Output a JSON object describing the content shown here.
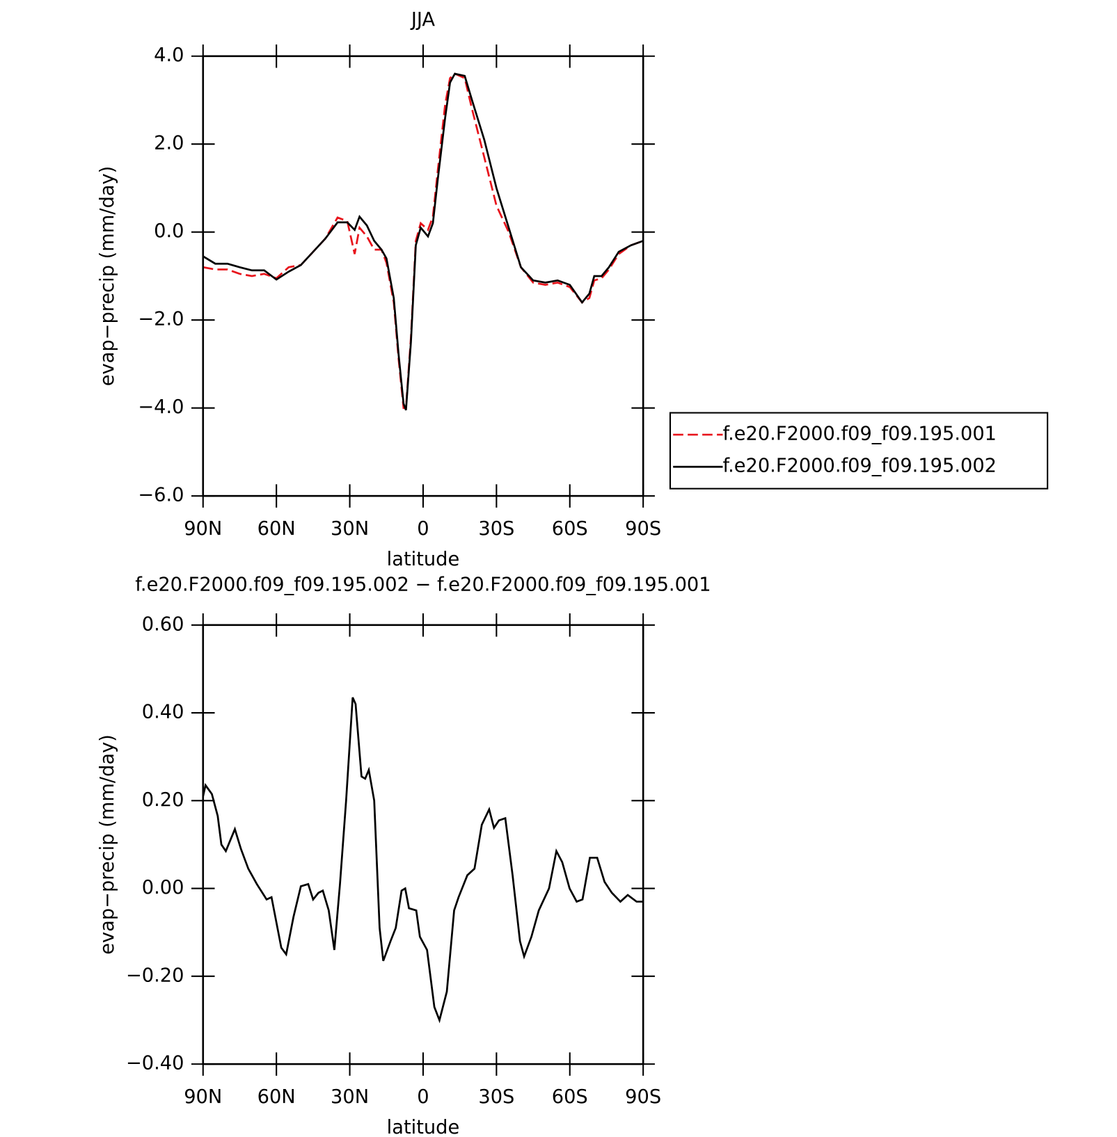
{
  "chart_data": [
    {
      "type": "line",
      "title": "JJA",
      "xlabel": "latitude",
      "ylabel": "evap−precip (mm/day)",
      "x": [
        90,
        85,
        80,
        75,
        70,
        65,
        60,
        55,
        50,
        45,
        40,
        35,
        31,
        28,
        26,
        23,
        20,
        17,
        15,
        12,
        10,
        8,
        7,
        5,
        3,
        1,
        -2,
        -4,
        -6,
        -9,
        -11,
        -13,
        -17,
        -20,
        -25,
        -30,
        -35,
        -40,
        -45,
        -50,
        -55,
        -60,
        -65,
        -68,
        -70,
        -73,
        -76,
        -80,
        -85,
        -90
      ],
      "series": [
        {
          "name": "f.e20.F2000.f09_f09.195.001",
          "color": "#e8141c",
          "style": "dashed",
          "values": [
            -0.8,
            -0.85,
            -0.85,
            -0.95,
            -1.0,
            -0.95,
            -1.05,
            -0.8,
            -0.75,
            -0.45,
            -0.15,
            0.33,
            0.25,
            -0.5,
            0.1,
            -0.1,
            -0.4,
            -0.4,
            -0.7,
            -1.6,
            -2.9,
            -4.0,
            -4.0,
            -2.4,
            -0.2,
            0.2,
            0.05,
            0.35,
            1.4,
            2.9,
            3.5,
            3.6,
            3.5,
            2.8,
            1.7,
            0.6,
            0.0,
            -0.8,
            -1.15,
            -1.2,
            -1.15,
            -1.25,
            -1.6,
            -1.5,
            -1.1,
            -1.05,
            -0.85,
            -0.5,
            -0.3,
            -0.2
          ]
        },
        {
          "name": "f.e20.F2000.f09_f09.195.002",
          "color": "#000000",
          "style": "solid",
          "values": [
            -0.55,
            -0.72,
            -0.72,
            -0.8,
            -0.87,
            -0.87,
            -1.08,
            -0.9,
            -0.75,
            -0.45,
            -0.15,
            0.22,
            0.22,
            0.05,
            0.35,
            0.15,
            -0.2,
            -0.4,
            -0.6,
            -1.5,
            -2.8,
            -3.9,
            -4.05,
            -2.5,
            -0.3,
            0.1,
            -0.1,
            0.2,
            1.2,
            2.6,
            3.4,
            3.6,
            3.55,
            3.0,
            2.1,
            1.0,
            0.1,
            -0.8,
            -1.1,
            -1.15,
            -1.1,
            -1.2,
            -1.6,
            -1.4,
            -1.0,
            -1.0,
            -0.8,
            -0.45,
            -0.3,
            -0.2
          ]
        }
      ],
      "xlim": [
        90,
        -90
      ],
      "xticks": [
        {
          "value": 90,
          "label": "90N"
        },
        {
          "value": 60,
          "label": "60N"
        },
        {
          "value": 30,
          "label": "30N"
        },
        0,
        {
          "value": -30,
          "label": "30S"
        },
        {
          "value": -60,
          "label": "60S"
        },
        {
          "value": -90,
          "label": "90S"
        }
      ],
      "ylim": [
        -6,
        4
      ],
      "yticks": [
        {
          "value": -6,
          "label": "−6.0"
        },
        {
          "value": -4,
          "label": "−4.0"
        },
        {
          "value": -2,
          "label": "−2.0"
        },
        {
          "value": 0,
          "label": "0.0"
        },
        {
          "value": 2,
          "label": "2.0"
        },
        {
          "value": 4,
          "label": "4.0"
        }
      ],
      "legend": "right"
    },
    {
      "type": "line",
      "title": "f.e20.F2000.f09_f09.195.002 − f.e20.F2000.f09_f09.195.001",
      "xlabel": "latitude",
      "ylabel": "evap−precip (mm/day)",
      "x": [
        90,
        89,
        86.4,
        84,
        82.5,
        80.7,
        77,
        74.5,
        71.5,
        68,
        64,
        62,
        58,
        56,
        53,
        50,
        47,
        45,
        42.8,
        41,
        38.6,
        36.3,
        34,
        31.5,
        28.8,
        27.6,
        25.2,
        23.7,
        22.2,
        20,
        17.8,
        16.3,
        13.3,
        11.2,
        8.8,
        7.3,
        5.8,
        2.8,
        1.3,
        -1.6,
        -4.6,
        -6.7,
        -9.7,
        -12.7,
        -14.5,
        -18.1,
        -21,
        -24,
        -27,
        -29,
        -31,
        -33.6,
        -36.6,
        -39.6,
        -41.3,
        -44.3,
        -47.3,
        -51.5,
        -54.5,
        -56.9,
        -59.9,
        -62.8,
        -65.2,
        -68.2,
        -71.2,
        -74.2,
        -77.2,
        -80.7,
        -83.7,
        -87.3,
        -90
      ],
      "series": [
        {
          "name": null,
          "color": "#000000",
          "style": "solid",
          "values": [
            0.21,
            0.235,
            0.215,
            0.165,
            0.1,
            0.085,
            0.135,
            0.09,
            0.045,
            0.01,
            -0.025,
            -0.02,
            -0.135,
            -0.15,
            -0.065,
            0.005,
            0.01,
            -0.025,
            -0.01,
            -0.005,
            -0.05,
            -0.14,
            0.01,
            0.2,
            0.435,
            0.42,
            0.255,
            0.25,
            0.27,
            0.2,
            -0.09,
            -0.165,
            -0.12,
            -0.09,
            -0.005,
            0.0,
            -0.045,
            -0.05,
            -0.11,
            -0.14,
            -0.27,
            -0.3,
            -0.235,
            -0.05,
            -0.02,
            0.03,
            0.045,
            0.145,
            0.18,
            0.138,
            0.155,
            0.16,
            0.03,
            -0.12,
            -0.155,
            -0.11,
            -0.05,
            0.0,
            0.085,
            0.06,
            0.0,
            -0.03,
            -0.025,
            0.07,
            0.07,
            0.015,
            -0.01,
            -0.03,
            -0.015,
            -0.03,
            -0.03
          ]
        }
      ],
      "xlim": [
        90,
        -90
      ],
      "xticks": [
        {
          "value": 90,
          "label": "90N"
        },
        {
          "value": 60,
          "label": "60N"
        },
        {
          "value": 30,
          "label": "30N"
        },
        0,
        {
          "value": -30,
          "label": "30S"
        },
        {
          "value": -60,
          "label": "60S"
        },
        {
          "value": -90,
          "label": "90S"
        }
      ],
      "ylim": [
        -0.4,
        0.6
      ],
      "yticks": [
        {
          "value": -0.4,
          "label": "−0.40"
        },
        {
          "value": -0.2,
          "label": "−0.20"
        },
        {
          "value": 0,
          "label": "0.00"
        },
        {
          "value": 0.2,
          "label": "0.20"
        },
        {
          "value": 0.4,
          "label": "0.40"
        },
        {
          "value": 0.6,
          "label": "0.60"
        }
      ]
    }
  ]
}
